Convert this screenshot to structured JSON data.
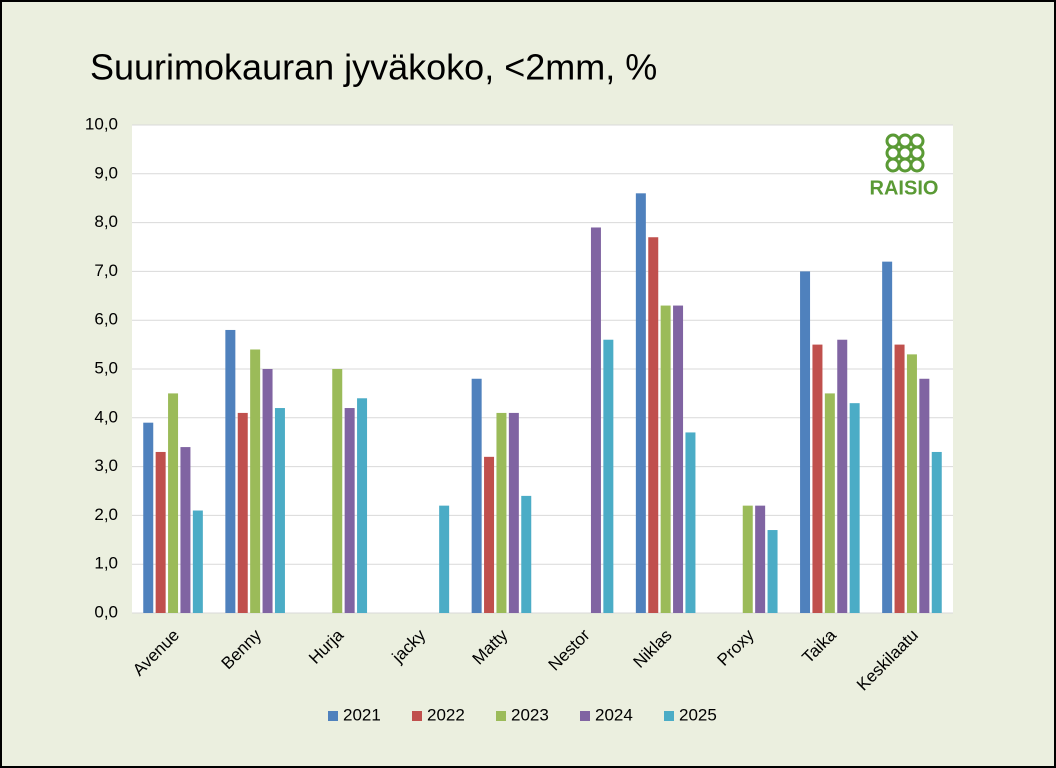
{
  "chart_data": {
    "type": "bar",
    "title": "Suurimokauran jyväkoko, <2mm, %",
    "categories": [
      "Avenue",
      "Benny",
      "Hurja",
      "jacky",
      "Matty",
      "Nestor",
      "Niklas",
      "Proxy",
      "Taika",
      "Keskilaatu"
    ],
    "series": [
      {
        "name": "2021",
        "color": "#4f81bd",
        "values": [
          3.9,
          5.8,
          null,
          null,
          4.8,
          null,
          8.6,
          null,
          7.0,
          7.2
        ]
      },
      {
        "name": "2022",
        "color": "#c0504d",
        "values": [
          3.3,
          4.1,
          null,
          null,
          3.2,
          null,
          7.7,
          null,
          5.5,
          5.5
        ]
      },
      {
        "name": "2023",
        "color": "#9bbb59",
        "values": [
          4.5,
          5.4,
          5.0,
          null,
          4.1,
          null,
          6.3,
          2.2,
          4.5,
          5.3
        ]
      },
      {
        "name": "2024",
        "color": "#8064a2",
        "values": [
          3.4,
          5.0,
          4.2,
          null,
          4.1,
          7.9,
          6.3,
          2.2,
          5.6,
          4.8
        ]
      },
      {
        "name": "2025",
        "color": "#4bacc6",
        "values": [
          2.1,
          4.2,
          4.4,
          2.2,
          2.4,
          5.6,
          3.7,
          1.7,
          4.3,
          3.3
        ]
      }
    ],
    "ylim": [
      0,
      10
    ],
    "yticks": [
      {
        "value": 0,
        "label": "0,0"
      },
      {
        "value": 1,
        "label": "1,0"
      },
      {
        "value": 2,
        "label": "2,0"
      },
      {
        "value": 3,
        "label": "3,0"
      },
      {
        "value": 4,
        "label": "4,0"
      },
      {
        "value": 5,
        "label": "5,0"
      },
      {
        "value": 6,
        "label": "6,0"
      },
      {
        "value": 7,
        "label": "7,0"
      },
      {
        "value": 8,
        "label": "8,0"
      },
      {
        "value": 9,
        "label": "9,0"
      },
      {
        "value": 10,
        "label": "10,0"
      }
    ],
    "grid": true,
    "legend": "bottom",
    "logo": "RAISIO"
  }
}
